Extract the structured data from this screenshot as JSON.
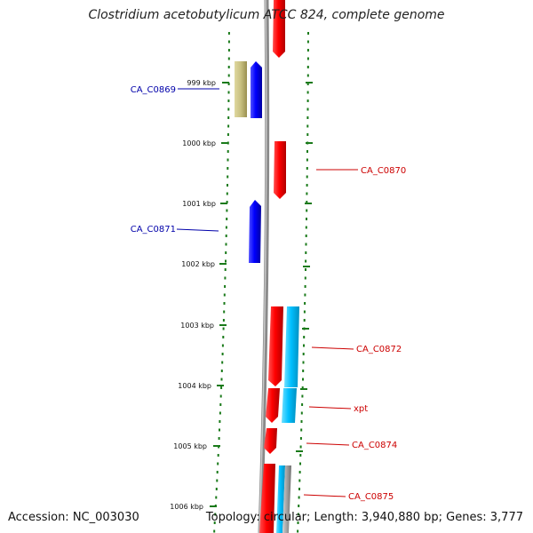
{
  "title": "Clostridium acetobutylicum ATCC 824, complete genome",
  "accession_text": "Accession: NC_003030",
  "summary_text": "Topology: circular; Length: 3,940,880 bp; Genes: 3,777",
  "colors": {
    "forward_strand": "#ff0000",
    "reverse_strand": "#0000ff",
    "gene_label_forward": "#cc0000",
    "gene_label_reverse": "#0000aa",
    "cyan_feature": "#00bfff",
    "olive_feature": "#c8c080",
    "grey_feature": "#a0a0a0",
    "backbone": "#808080",
    "tick_marks": "#1a7a1a"
  },
  "ruler": {
    "unit": "kbp",
    "ticks": [
      "999 kbp",
      "1000 kbp",
      "1001 kbp",
      "1002 kbp",
      "1003 kbp",
      "1004 kbp",
      "1005 kbp",
      "1006 kbp"
    ]
  },
  "gene_labels": [
    {
      "name": "CA_C0869",
      "side": "left",
      "strand": "reverse"
    },
    {
      "name": "CA_C0870",
      "side": "right",
      "strand": "forward"
    },
    {
      "name": "CA_C0871",
      "side": "left",
      "strand": "reverse"
    },
    {
      "name": "CA_C0872",
      "side": "right",
      "strand": "forward"
    },
    {
      "name": "xpt",
      "side": "right",
      "strand": "forward"
    },
    {
      "name": "CA_C0874",
      "side": "right",
      "strand": "forward"
    },
    {
      "name": "CA_C0875",
      "side": "right",
      "strand": "forward"
    }
  ]
}
